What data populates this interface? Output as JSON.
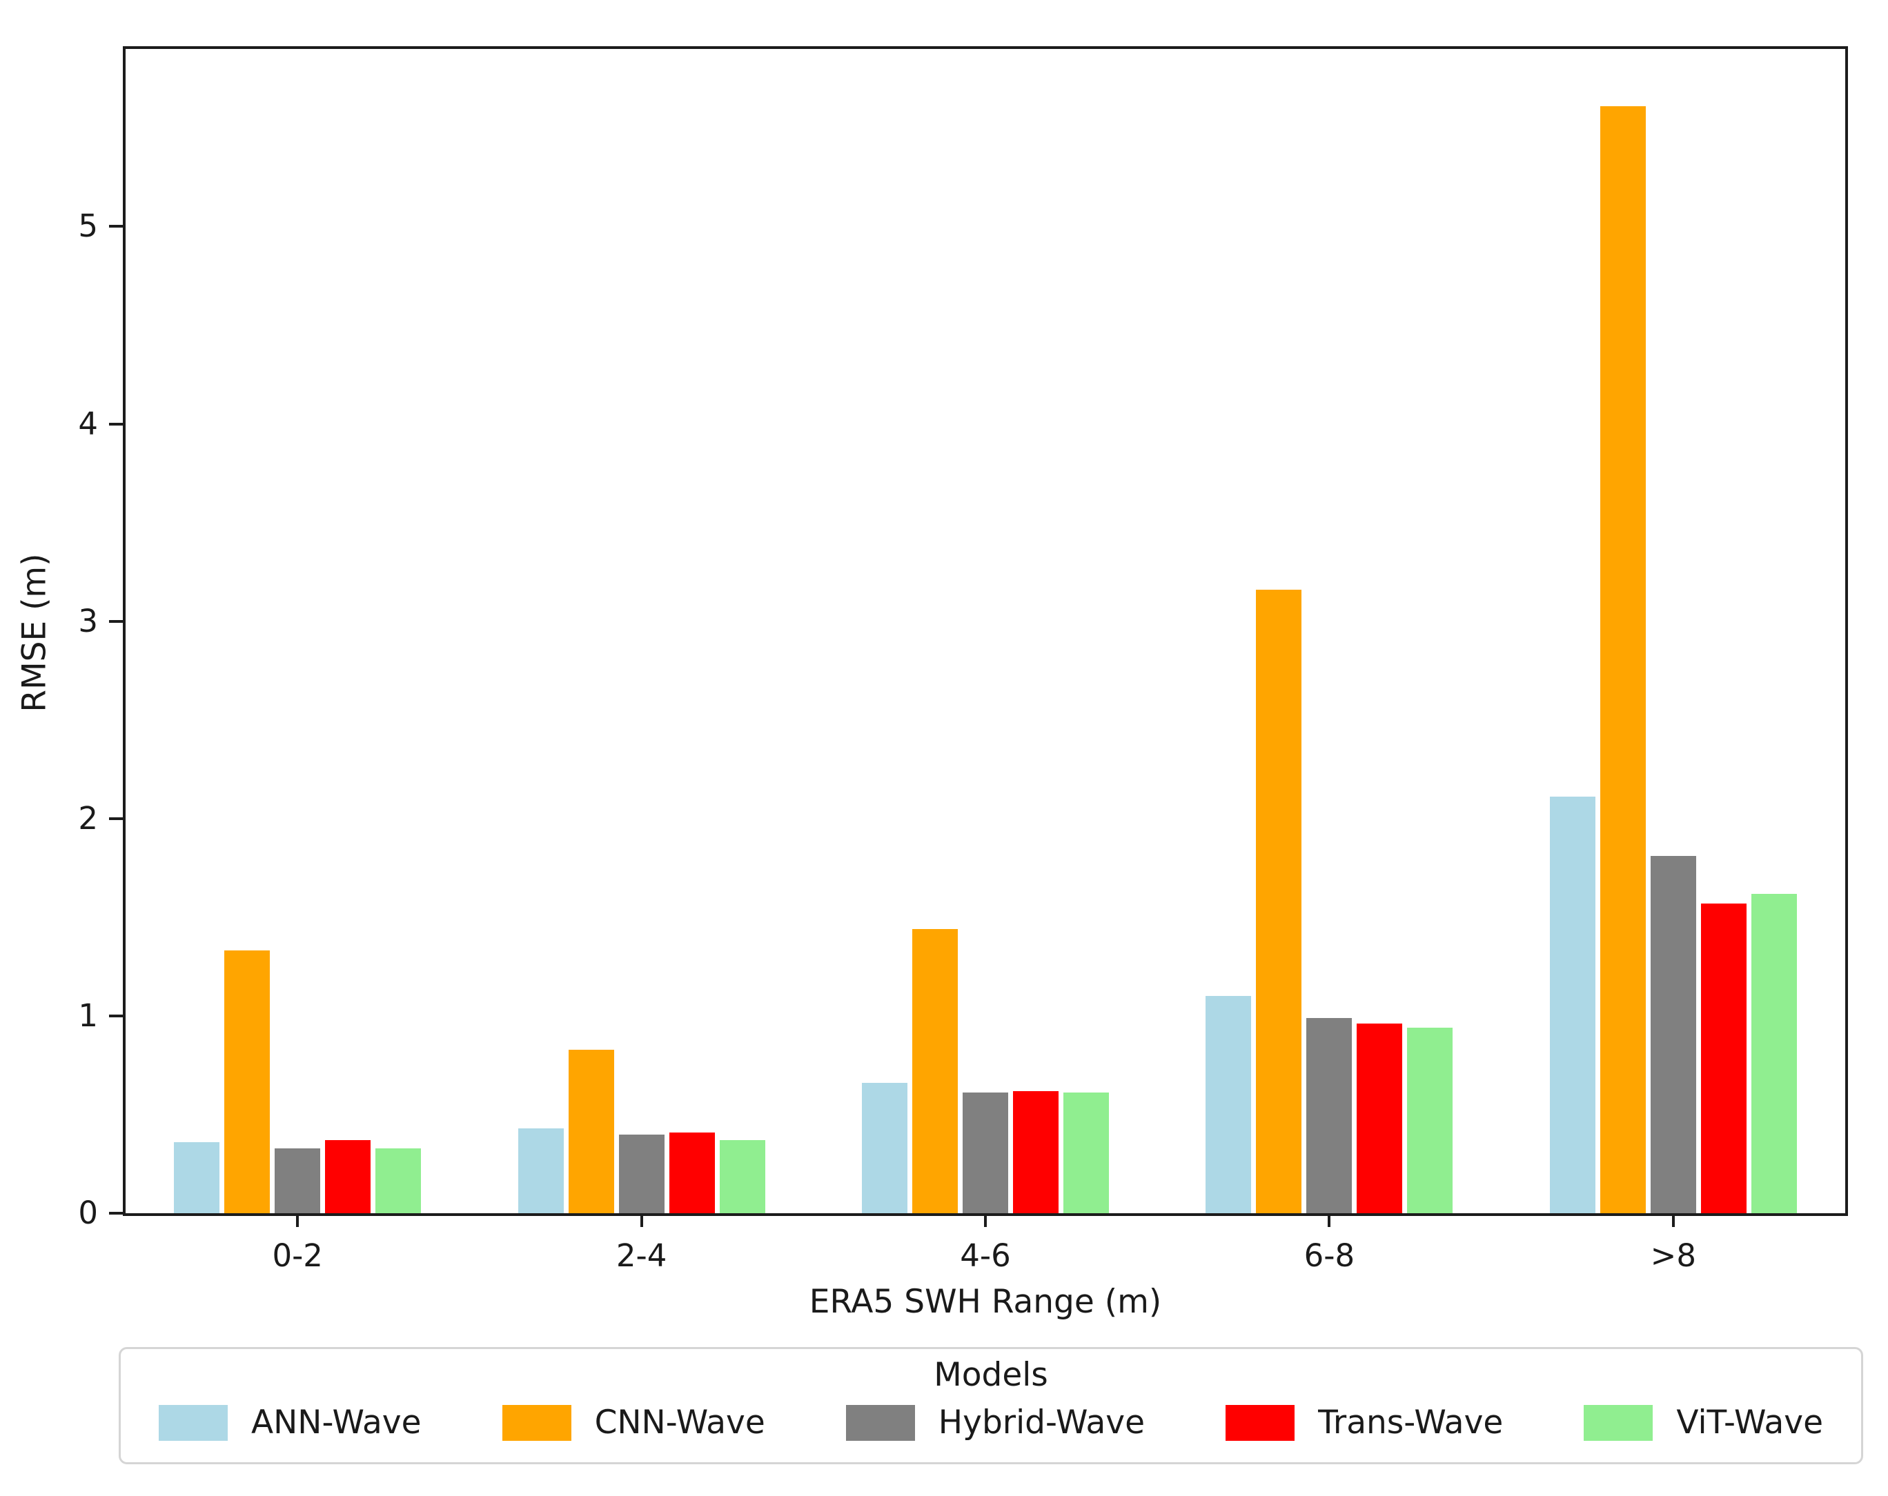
{
  "chart_data": {
    "type": "bar",
    "title": "",
    "xlabel": "ERA5 SWH Range (m)",
    "ylabel": "RMSE (m)",
    "categories": [
      "0-2",
      "2-4",
      "4-6",
      "6-8",
      ">8"
    ],
    "series": [
      {
        "name": "ANN-Wave",
        "color": "#ADD8E6",
        "values": [
          0.36,
          0.43,
          0.66,
          1.1,
          2.11
        ]
      },
      {
        "name": "CNN-Wave",
        "color": "#FFA500",
        "values": [
          1.33,
          0.83,
          1.44,
          3.16,
          5.61
        ]
      },
      {
        "name": "Hybrid-Wave",
        "color": "#808080",
        "values": [
          0.33,
          0.4,
          0.61,
          0.99,
          1.81
        ]
      },
      {
        "name": "Trans-Wave",
        "color": "#FF0000",
        "values": [
          0.37,
          0.41,
          0.62,
          0.96,
          1.57
        ]
      },
      {
        "name": "ViT-Wave",
        "color": "#90EE90",
        "values": [
          0.33,
          0.37,
          0.61,
          0.94,
          1.62
        ]
      }
    ],
    "y_ticks": [
      0,
      1,
      2,
      3,
      4,
      5
    ],
    "ylim": [
      0,
      5.9
    ],
    "grid": false,
    "legend_title": "Models",
    "legend_position": "bottom"
  }
}
